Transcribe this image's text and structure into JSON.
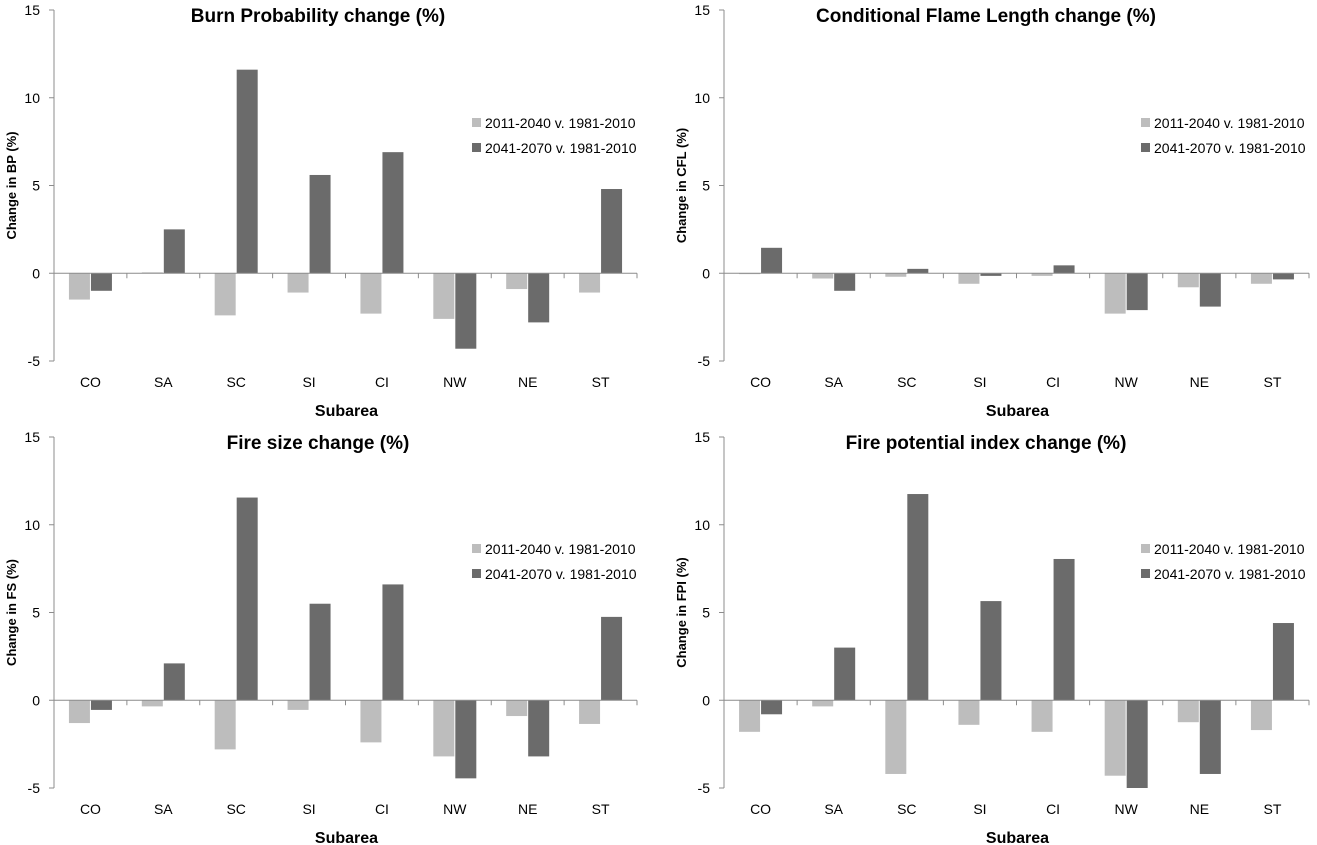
{
  "colors": {
    "series1": "#bdbdbd",
    "series2": "#6b6b6b",
    "axis": "#8c8c8c"
  },
  "chart_data": [
    {
      "type": "bar",
      "title": "Burn Probability change (%)",
      "xlabel": "Subarea",
      "ylabel": "Change in BP (%)",
      "ylim": [
        -5,
        15
      ],
      "yticks": [
        "-5",
        "0",
        "5",
        "10",
        "15"
      ],
      "categories": [
        "CO",
        "SA",
        "SC",
        "SI",
        "CI",
        "NW",
        "NE",
        "ST"
      ],
      "legend_position": "right",
      "series": [
        {
          "name": "2011-2040 v. 1981-2010",
          "values": [
            -1.5,
            0.05,
            -2.4,
            -1.1,
            -2.3,
            -2.6,
            -0.9,
            -1.1
          ]
        },
        {
          "name": "2041-2070 v. 1981-2010",
          "values": [
            -1.0,
            2.5,
            11.6,
            5.6,
            6.9,
            -4.3,
            -2.8,
            4.8
          ]
        }
      ]
    },
    {
      "type": "bar",
      "title": "Conditional Flame Length change (%)",
      "xlabel": "Subarea",
      "ylabel": "Change in CFL (%)",
      "ylim": [
        -5,
        15
      ],
      "yticks": [
        "-5",
        "0",
        "5",
        "10",
        "15"
      ],
      "categories": [
        "CO",
        "SA",
        "SC",
        "SI",
        "CI",
        "NW",
        "NE",
        "ST"
      ],
      "legend_position": "right",
      "series": [
        {
          "name": "2011-2040 v. 1981-2010",
          "values": [
            -0.05,
            -0.3,
            -0.2,
            -0.6,
            -0.15,
            -2.3,
            -0.8,
            -0.6
          ]
        },
        {
          "name": "2041-2070 v. 1981-2010",
          "values": [
            1.45,
            -1.0,
            0.25,
            -0.15,
            0.45,
            -2.1,
            -1.9,
            -0.35
          ]
        }
      ]
    },
    {
      "type": "bar",
      "title": "Fire size change (%)",
      "xlabel": "Subarea",
      "ylabel": "Change in FS (%)",
      "ylim": [
        -5,
        15
      ],
      "yticks": [
        "-5",
        "0",
        "5",
        "10",
        "15"
      ],
      "categories": [
        "CO",
        "SA",
        "SC",
        "SI",
        "CI",
        "NW",
        "NE",
        "ST"
      ],
      "legend_position": "right",
      "series": [
        {
          "name": "2011-2040 v. 1981-2010",
          "values": [
            -1.3,
            -0.35,
            -2.8,
            -0.55,
            -2.4,
            -3.2,
            -0.9,
            -1.35
          ]
        },
        {
          "name": "2041-2070 v. 1981-2010",
          "values": [
            -0.55,
            2.1,
            11.55,
            5.5,
            6.6,
            -4.45,
            -3.2,
            4.75
          ]
        }
      ]
    },
    {
      "type": "bar",
      "title": "Fire potential index change (%)",
      "xlabel": "Subarea",
      "ylabel": "Change in FPI (%)",
      "ylim": [
        -5,
        15
      ],
      "yticks": [
        "-5",
        "0",
        "5",
        "10",
        "15"
      ],
      "categories": [
        "CO",
        "SA",
        "SC",
        "SI",
        "CI",
        "NW",
        "NE",
        "ST"
      ],
      "legend_position": "right",
      "series": [
        {
          "name": "2011-2040 v. 1981-2010",
          "values": [
            -1.8,
            -0.35,
            -4.2,
            -1.4,
            -1.8,
            -4.3,
            -1.25,
            -1.7
          ]
        },
        {
          "name": "2041-2070 v. 1981-2010",
          "values": [
            -0.8,
            3.0,
            11.75,
            5.65,
            8.05,
            -5.0,
            -4.2,
            4.4
          ]
        }
      ]
    }
  ]
}
